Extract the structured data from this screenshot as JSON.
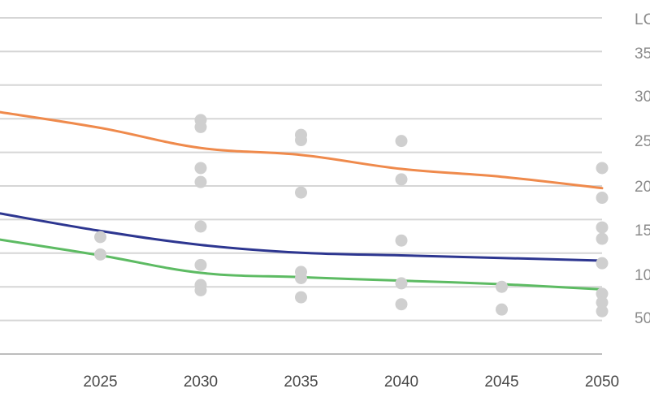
{
  "chart_data": {
    "type": "line",
    "x": [
      2020,
      2025,
      2030,
      2035,
      2040,
      2045,
      2050
    ],
    "x_tick_labels": [
      "2025",
      "2030",
      "2035",
      "2040",
      "2045",
      "2050"
    ],
    "y_axis_title": "LC",
    "y_tick_labels": [
      "35",
      "30",
      "25",
      "20",
      "15",
      "10",
      "50"
    ],
    "series": [
      {
        "color": "#ef8a4c",
        "values": [
          277,
          259,
          236,
          228,
          212,
          203,
          190
        ]
      },
      {
        "color": "#2d3690",
        "values": [
          161,
          141,
          125,
          116,
          113,
          110,
          107
        ]
      },
      {
        "color": "#5dbb63",
        "values": [
          131,
          113,
          93,
          88,
          84,
          80,
          74
        ]
      }
    ],
    "scatter": {
      "color": "#cfcfcf",
      "points": [
        [
          2025,
          134
        ],
        [
          2025,
          114
        ],
        [
          2030,
          268
        ],
        [
          2030,
          260
        ],
        [
          2030,
          213
        ],
        [
          2030,
          197
        ],
        [
          2030,
          146
        ],
        [
          2030,
          102
        ],
        [
          2030,
          79
        ],
        [
          2030,
          73
        ],
        [
          2035,
          251
        ],
        [
          2035,
          245
        ],
        [
          2035,
          185
        ],
        [
          2035,
          94
        ],
        [
          2035,
          87
        ],
        [
          2035,
          65
        ],
        [
          2040,
          244
        ],
        [
          2040,
          200
        ],
        [
          2040,
          130
        ],
        [
          2040,
          81
        ],
        [
          2040,
          57
        ],
        [
          2045,
          77
        ],
        [
          2045,
          51
        ],
        [
          2050,
          213
        ],
        [
          2050,
          179
        ],
        [
          2050,
          145
        ],
        [
          2050,
          132
        ],
        [
          2050,
          104
        ],
        [
          2050,
          69
        ],
        [
          2050,
          59
        ],
        [
          2050,
          49
        ]
      ]
    },
    "ylim": [
      0,
      380
    ],
    "xlim": [
      2020,
      2050
    ],
    "grid": true,
    "gridline_values": [
      0,
      38.5,
      77,
      115.5,
      154,
      192.5,
      231,
      269.5,
      308,
      346.5,
      385
    ],
    "gridline_color": "#d6d6d6"
  }
}
